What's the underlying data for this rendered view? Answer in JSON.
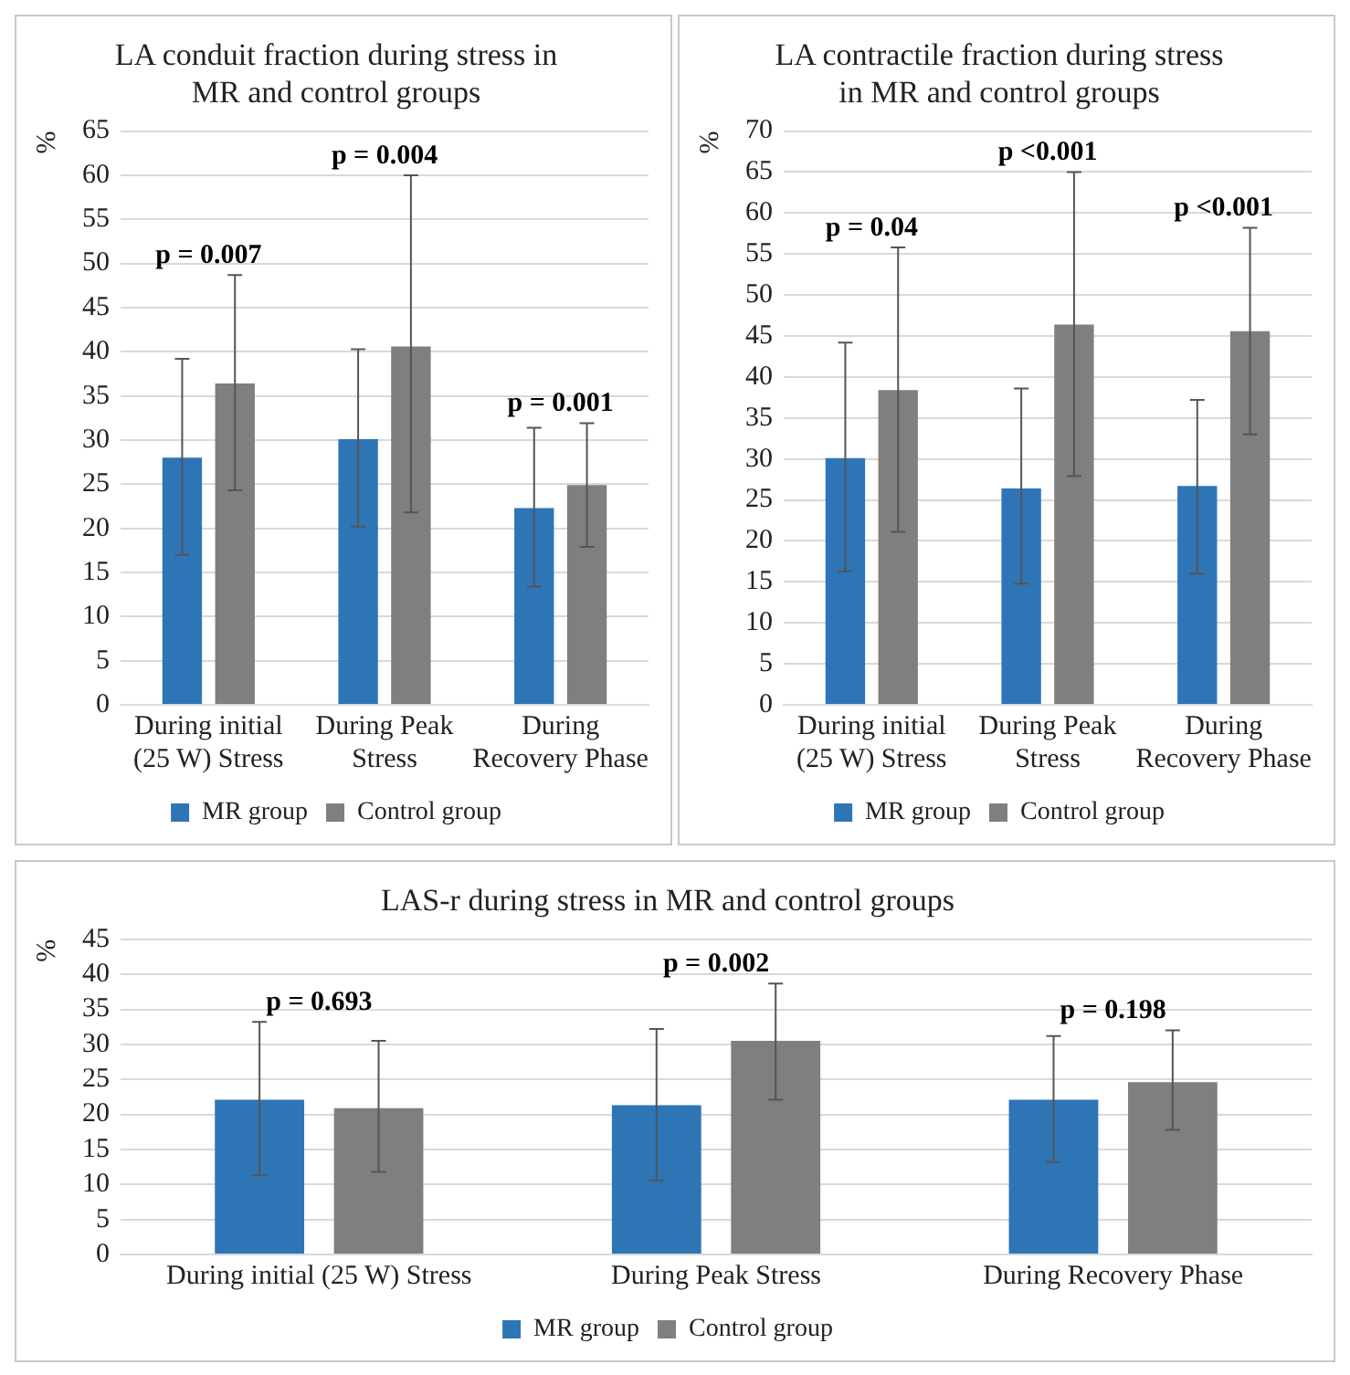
{
  "chart_data": [
    {
      "type": "bar",
      "title": "LA conduit fraction during stress in MR and control groups",
      "ylabel": "%",
      "categories": [
        "During initial (25 W) Stress",
        "During Peak Stress",
        "During Recovery Phase"
      ],
      "series": [
        {
          "name": "MR group",
          "color": "#2e75b6",
          "values": [
            28,
            30.1,
            22.3
          ],
          "errors": [
            [
              17,
              39.2
            ],
            [
              20.2,
              40.3
            ],
            [
              13.4,
              31.4
            ]
          ]
        },
        {
          "name": "Control group",
          "color": "#7f7f7f",
          "values": [
            36.4,
            40.6,
            24.9
          ],
          "errors": [
            [
              24.3,
              48.7
            ],
            [
              21.8,
              60
            ],
            [
              17.9,
              31.9
            ]
          ]
        }
      ],
      "ylim": [
        0,
        65
      ],
      "yticks": [
        0,
        5,
        10,
        15,
        20,
        25,
        30,
        35,
        40,
        45,
        50,
        55,
        60,
        65
      ],
      "grid": "y",
      "legend": "bottom",
      "annotations": [
        "p = 0.007",
        "p = 0.004",
        "p = 0.001"
      ]
    },
    {
      "type": "bar",
      "title": "LA contractile fraction during stress in MR and control groups",
      "ylabel": "%",
      "categories": [
        "During initial (25 W) Stress",
        "During Peak Stress",
        "During Recovery Phase"
      ],
      "series": [
        {
          "name": "MR group",
          "color": "#2e75b6",
          "values": [
            30.1,
            26.4,
            26.7
          ],
          "errors": [
            [
              16.3,
              44.2
            ],
            [
              14.8,
              38.6
            ],
            [
              16,
              37.2
            ]
          ]
        },
        {
          "name": "Control group",
          "color": "#7f7f7f",
          "values": [
            38.4,
            46.4,
            45.6
          ],
          "errors": [
            [
              21.1,
              55.8
            ],
            [
              27.9,
              65
            ],
            [
              33,
              58.2
            ]
          ]
        }
      ],
      "ylim": [
        0,
        70
      ],
      "yticks": [
        0,
        5,
        10,
        15,
        20,
        25,
        30,
        35,
        40,
        45,
        50,
        55,
        60,
        65,
        70
      ],
      "grid": "y",
      "legend": "bottom",
      "annotations": [
        "p = 0.04",
        "p <0.001",
        "p <0.001"
      ]
    },
    {
      "type": "bar",
      "title": "LAS-r during stress in MR and control groups",
      "ylabel": "%",
      "categories": [
        "During initial (25 W) Stress",
        "During Peak Stress",
        "During Recovery Phase"
      ],
      "series": [
        {
          "name": "MR group",
          "color": "#2e75b6",
          "values": [
            22.1,
            21.3,
            22.1
          ],
          "errors": [
            [
              11.3,
              33.2
            ],
            [
              10.6,
              32.2
            ],
            [
              13.2,
              31.2
            ]
          ]
        },
        {
          "name": "Control group",
          "color": "#7f7f7f",
          "values": [
            20.9,
            30.5,
            24.6
          ],
          "errors": [
            [
              11.8,
              30.5
            ],
            [
              22.1,
              38.7
            ],
            [
              17.8,
              32
            ]
          ]
        }
      ],
      "ylim": [
        0,
        45
      ],
      "yticks": [
        0,
        5,
        10,
        15,
        20,
        25,
        30,
        35,
        40,
        45
      ],
      "grid": "y",
      "legend": "bottom",
      "annotations": [
        "p = 0.693",
        "p = 0.002",
        "p = 0.198"
      ]
    }
  ]
}
